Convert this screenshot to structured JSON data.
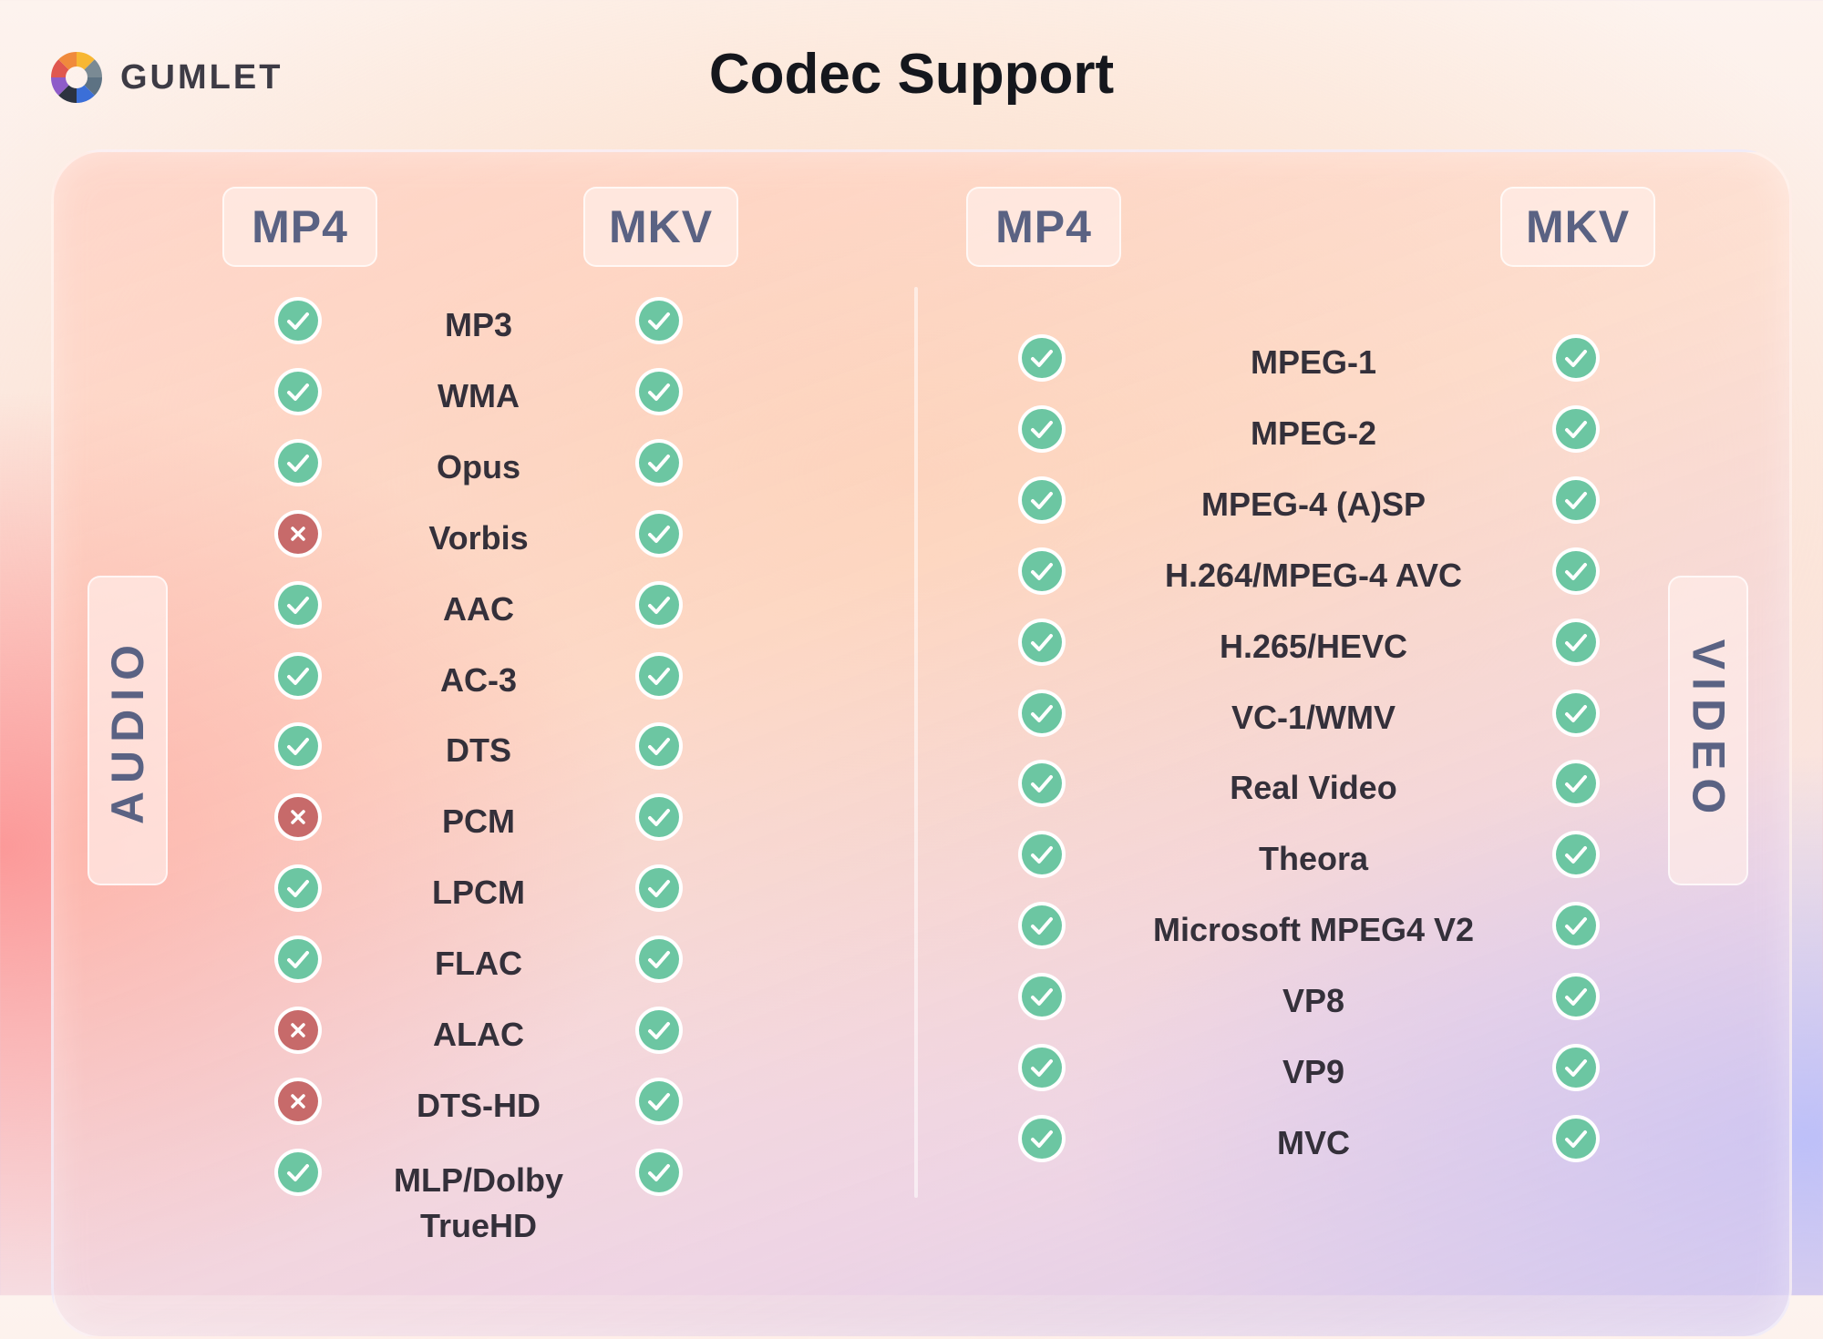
{
  "brand": {
    "name": "GUMLET"
  },
  "title": "Codec Support",
  "colors": {
    "yes": "#6cc6a2",
    "no": "#c76a6a",
    "accent_text": "#5a6283"
  },
  "audio": {
    "section_label": "AUDIO",
    "headers": [
      "MP4",
      "MKV"
    ],
    "rows": [
      {
        "name": "MP3",
        "mp4": "yes",
        "mkv": "yes"
      },
      {
        "name": "WMA",
        "mp4": "yes",
        "mkv": "yes"
      },
      {
        "name": "Opus",
        "mp4": "yes",
        "mkv": "yes"
      },
      {
        "name": "Vorbis",
        "mp4": "no",
        "mkv": "yes"
      },
      {
        "name": "AAC",
        "mp4": "yes",
        "mkv": "yes"
      },
      {
        "name": "AC-3",
        "mp4": "yes",
        "mkv": "yes"
      },
      {
        "name": "DTS",
        "mp4": "yes",
        "mkv": "yes"
      },
      {
        "name": "PCM",
        "mp4": "no",
        "mkv": "yes"
      },
      {
        "name": "LPCM",
        "mp4": "yes",
        "mkv": "yes"
      },
      {
        "name": "FLAC",
        "mp4": "yes",
        "mkv": "yes"
      },
      {
        "name": "ALAC",
        "mp4": "no",
        "mkv": "yes"
      },
      {
        "name": "DTS-HD",
        "mp4": "no",
        "mkv": "yes"
      },
      {
        "name": "MLP/Dolby TrueHD",
        "name_lines": [
          "MLP/Dolby",
          "TrueHD"
        ],
        "mp4": "yes",
        "mkv": "yes"
      }
    ]
  },
  "video": {
    "section_label": "VIDEO",
    "headers": [
      "MP4",
      "MKV"
    ],
    "rows": [
      {
        "name": "MPEG-1",
        "mp4": "yes",
        "mkv": "yes"
      },
      {
        "name": "MPEG-2",
        "mp4": "yes",
        "mkv": "yes"
      },
      {
        "name": "MPEG-4 (A)SP",
        "mp4": "yes",
        "mkv": "yes"
      },
      {
        "name": "H.264/MPEG-4 AVC",
        "mp4": "yes",
        "mkv": "yes"
      },
      {
        "name": "H.265/HEVC",
        "mp4": "yes",
        "mkv": "yes"
      },
      {
        "name": "VC-1/WMV",
        "mp4": "yes",
        "mkv": "yes"
      },
      {
        "name": "Real Video",
        "mp4": "yes",
        "mkv": "yes"
      },
      {
        "name": "Theora",
        "mp4": "yes",
        "mkv": "yes"
      },
      {
        "name": "Microsoft MPEG4 V2",
        "mp4": "yes",
        "mkv": "yes"
      },
      {
        "name": "VP8",
        "mp4": "yes",
        "mkv": "yes"
      },
      {
        "name": "VP9",
        "mp4": "yes",
        "mkv": "yes"
      },
      {
        "name": "MVC",
        "mp4": "yes",
        "mkv": "yes"
      }
    ]
  }
}
